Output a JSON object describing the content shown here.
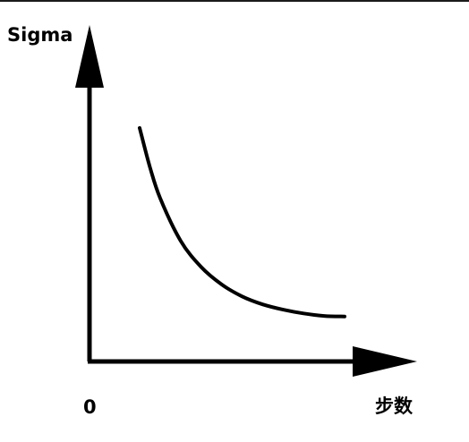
{
  "chart_data": {
    "type": "line",
    "title": "",
    "ylabel": "Sigma",
    "xlabel": "步数",
    "origin_label": "0",
    "axis_color": "#000000",
    "curve_color": "#000000",
    "grid": false,
    "legend": "none",
    "series": [
      {
        "x": [
          0.0,
          0.05,
          0.1,
          0.2,
          0.3,
          0.4,
          0.5,
          0.6,
          0.7,
          0.8,
          0.9,
          1.0
        ],
        "y": [
          1.0,
          0.795,
          0.63,
          0.405,
          0.267,
          0.175,
          0.112,
          0.07,
          0.042,
          0.022,
          0.009,
          0.006
        ]
      }
    ]
  }
}
